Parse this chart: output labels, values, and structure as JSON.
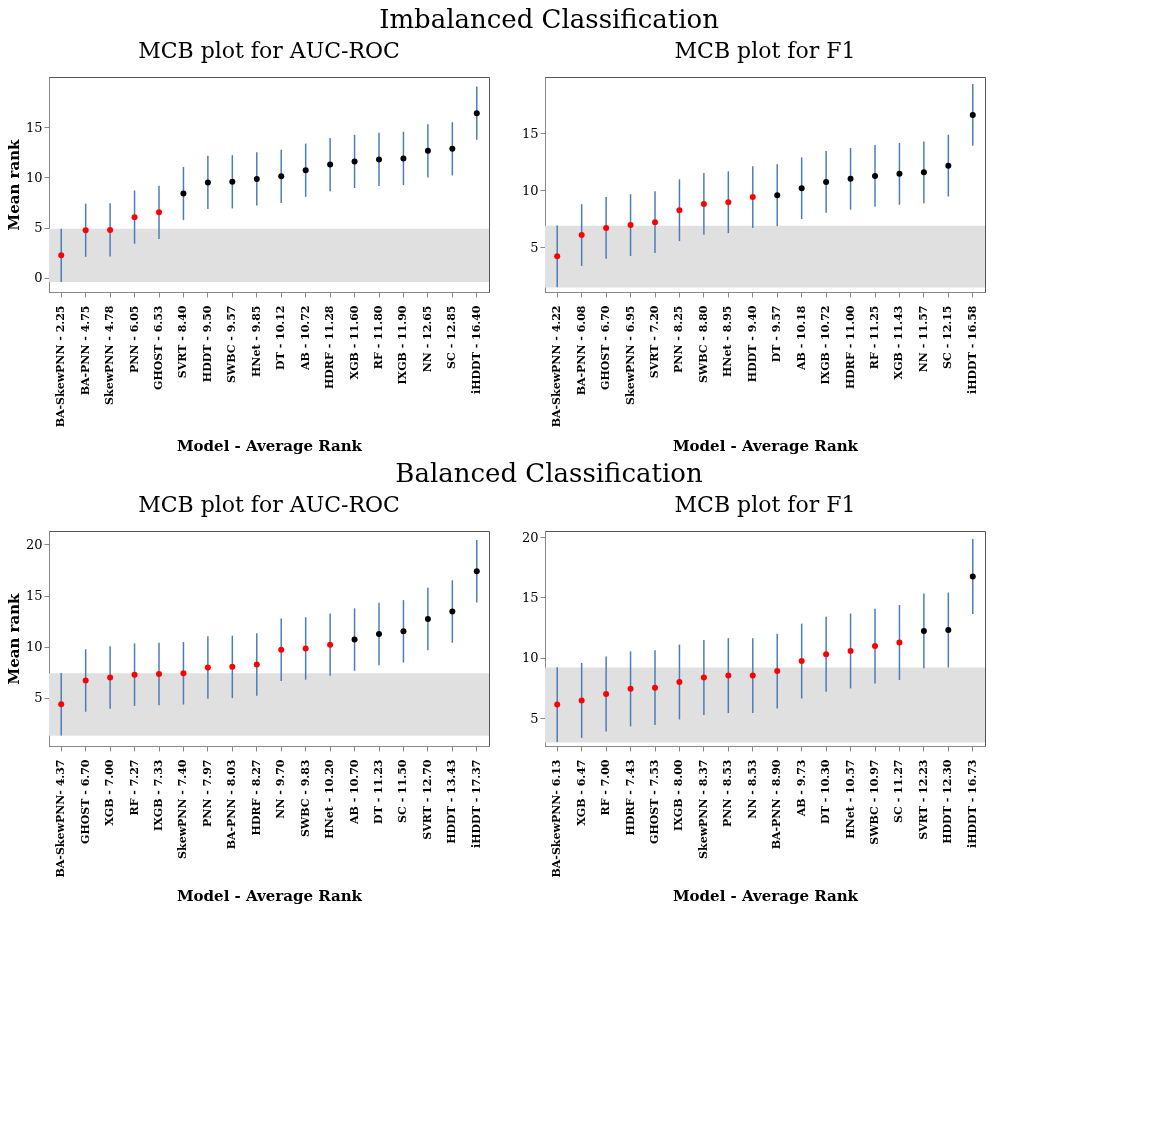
{
  "chart_data": [
    {
      "type": "scatter",
      "title": "MCB plot for AUC-ROC",
      "xlabel": "Model - Average Rank",
      "ylabel": "Mean rank",
      "annotations": [
        "Imbalanced Classification"
      ],
      "categories": [
        "BA-SkewPNN - 2.25",
        "BA-PNN - 4.75",
        "SkewPNN - 4.78",
        "PNN - 6.05",
        "GHOST - 6.53",
        "SVRT - 8.40",
        "HDDT - 9.50",
        "SWBC - 9.57",
        "HNet - 9.85",
        "DT - 10.12",
        "AB - 10.72",
        "HDRF - 11.28",
        "XGB - 11.60",
        "RF - 11.80",
        "IXGB - 11.90",
        "NN - 12.65",
        "SC - 12.85",
        "iHDDT - 16.40"
      ],
      "values": [
        2.25,
        4.75,
        4.78,
        6.05,
        6.53,
        8.4,
        9.5,
        9.57,
        9.85,
        10.12,
        10.72,
        11.28,
        11.6,
        11.8,
        11.9,
        12.65,
        12.85,
        16.4
      ],
      "errors": [
        2.65,
        2.65,
        2.65,
        2.65,
        2.65,
        2.65,
        2.65,
        2.65,
        2.65,
        2.65,
        2.65,
        2.65,
        2.65,
        2.65,
        2.65,
        2.65,
        2.65,
        2.65
      ],
      "colors": [
        "#ff0000",
        "#ff0000",
        "#ff0000",
        "#ff0000",
        "#ff0000",
        "#000000",
        "#000000",
        "#000000",
        "#000000",
        "#000000",
        "#000000",
        "#000000",
        "#000000",
        "#000000",
        "#000000",
        "#000000",
        "#000000",
        "#000000"
      ],
      "bands": [
        {
          "axis": "y",
          "from": -0.4,
          "to": 4.9,
          "color": "#e0e0e0"
        }
      ],
      "ylim": [
        -1.4,
        20
      ],
      "yticks": [
        0,
        5,
        10,
        15
      ],
      "grid": false
    },
    {
      "type": "scatter",
      "title": "MCB plot for F1",
      "xlabel": "Model - Average Rank",
      "categories": [
        "BA-SkewPNN - 4.22",
        "BA-PNN - 6.08",
        "GHOST - 6.70",
        "SkewPNN - 6.95",
        "SVRT - 7.20",
        "PNN - 8.25",
        "SWBC - 8.80",
        "HNet - 8.95",
        "HDDT - 9.40",
        "DT - 9.57",
        "AB - 10.18",
        "IXGB - 10.72",
        "HDRF - 11.00",
        "RF - 11.25",
        "XGB - 11.43",
        "NN - 11.57",
        "SC - 12.15",
        "iHDDT - 16.58"
      ],
      "values": [
        4.22,
        6.08,
        6.7,
        6.95,
        7.2,
        8.25,
        8.8,
        8.95,
        9.4,
        9.57,
        10.18,
        10.72,
        11.0,
        11.25,
        11.43,
        11.57,
        12.15,
        16.58
      ],
      "errors": [
        2.7,
        2.7,
        2.7,
        2.7,
        2.7,
        2.7,
        2.7,
        2.7,
        2.7,
        2.7,
        2.7,
        2.7,
        2.7,
        2.7,
        2.7,
        2.7,
        2.7,
        2.7
      ],
      "colors": [
        "#ff0000",
        "#ff0000",
        "#ff0000",
        "#ff0000",
        "#ff0000",
        "#ff0000",
        "#ff0000",
        "#ff0000",
        "#ff0000",
        "#000000",
        "#000000",
        "#000000",
        "#000000",
        "#000000",
        "#000000",
        "#000000",
        "#000000",
        "#000000"
      ],
      "bands": [
        {
          "axis": "y",
          "from": 1.5,
          "to": 6.9,
          "color": "#e0e0e0"
        }
      ],
      "ylim": [
        1.1,
        19.9
      ],
      "yticks": [
        5,
        10,
        15
      ],
      "grid": false
    },
    {
      "type": "scatter",
      "title": "MCB plot for AUC-ROC",
      "xlabel": "Model - Average Rank",
      "ylabel": "Mean rank",
      "annotations": [
        "Balanced Classification"
      ],
      "categories": [
        "BA-SkewPNN- 4.37",
        "GHOST - 6.70",
        "XGB - 7.00",
        "RF - 7.27",
        "IXGB - 7.33",
        "SkewPNN - 7.40",
        "PNN - 7.97",
        "BA-PNN - 8.03",
        "HDRF - 8.27",
        "NN - 9.70",
        "SWBC - 9.83",
        "HNet - 10.20",
        "AB - 10.70",
        "DT - 11.23",
        "SC - 11.50",
        "SVRT - 12.70",
        "HDDT - 13.43",
        "iHDDT - 17.37"
      ],
      "values": [
        4.37,
        6.7,
        7.0,
        7.27,
        7.33,
        7.4,
        7.97,
        8.03,
        8.27,
        9.7,
        9.83,
        10.2,
        10.7,
        11.23,
        11.5,
        12.7,
        13.43,
        17.37
      ],
      "errors": [
        3.05,
        3.05,
        3.05,
        3.05,
        3.05,
        3.05,
        3.05,
        3.05,
        3.05,
        3.05,
        3.05,
        3.05,
        3.05,
        3.05,
        3.05,
        3.05,
        3.05,
        3.05
      ],
      "colors": [
        "#ff0000",
        "#ff0000",
        "#ff0000",
        "#ff0000",
        "#ff0000",
        "#ff0000",
        "#ff0000",
        "#ff0000",
        "#ff0000",
        "#ff0000",
        "#ff0000",
        "#ff0000",
        "#000000",
        "#000000",
        "#000000",
        "#000000",
        "#000000",
        "#000000"
      ],
      "bands": [
        {
          "axis": "y",
          "from": 1.3,
          "to": 7.4,
          "color": "#e0e0e0"
        }
      ],
      "ylim": [
        0.3,
        21.3
      ],
      "yticks": [
        5,
        10,
        15,
        20
      ],
      "grid": false
    },
    {
      "type": "scatter",
      "title": "MCB plot for F1",
      "xlabel": "Model - Average Rank",
      "categories": [
        "BA-SkewPNN- 6.13",
        "XGB - 6.47",
        "RF - 7.00",
        "HDRF - 7.43",
        "GHOST - 7.53",
        "IXGB - 8.00",
        "SkewPNN - 8.37",
        "PNN - 8.53",
        "NN - 8.53",
        "BA-PNN - 8.90",
        "AB - 9.73",
        "DT - 10.30",
        "HNet - 10.57",
        "SWBC - 10.97",
        "SC - 11.27",
        "SVRT - 12.23",
        "HDDT - 12.30",
        "iHDDT - 16.73"
      ],
      "values": [
        6.13,
        6.47,
        7.0,
        7.43,
        7.53,
        8.0,
        8.37,
        8.53,
        8.53,
        8.9,
        9.73,
        10.3,
        10.57,
        10.97,
        11.27,
        12.23,
        12.3,
        16.73
      ],
      "errors": [
        3.1,
        3.1,
        3.1,
        3.1,
        3.1,
        3.1,
        3.1,
        3.1,
        3.1,
        3.1,
        3.1,
        3.1,
        3.1,
        3.1,
        3.1,
        3.1,
        3.1,
        3.1
      ],
      "colors": [
        "#ff0000",
        "#ff0000",
        "#ff0000",
        "#ff0000",
        "#ff0000",
        "#ff0000",
        "#ff0000",
        "#ff0000",
        "#ff0000",
        "#ff0000",
        "#ff0000",
        "#ff0000",
        "#ff0000",
        "#ff0000",
        "#ff0000",
        "#000000",
        "#000000",
        "#000000"
      ],
      "bands": [
        {
          "axis": "y",
          "from": 3.0,
          "to": 9.2,
          "color": "#e0e0e0"
        }
      ],
      "ylim": [
        2.7,
        20.5
      ],
      "yticks": [
        5,
        10,
        15,
        20
      ],
      "grid": false
    }
  ]
}
